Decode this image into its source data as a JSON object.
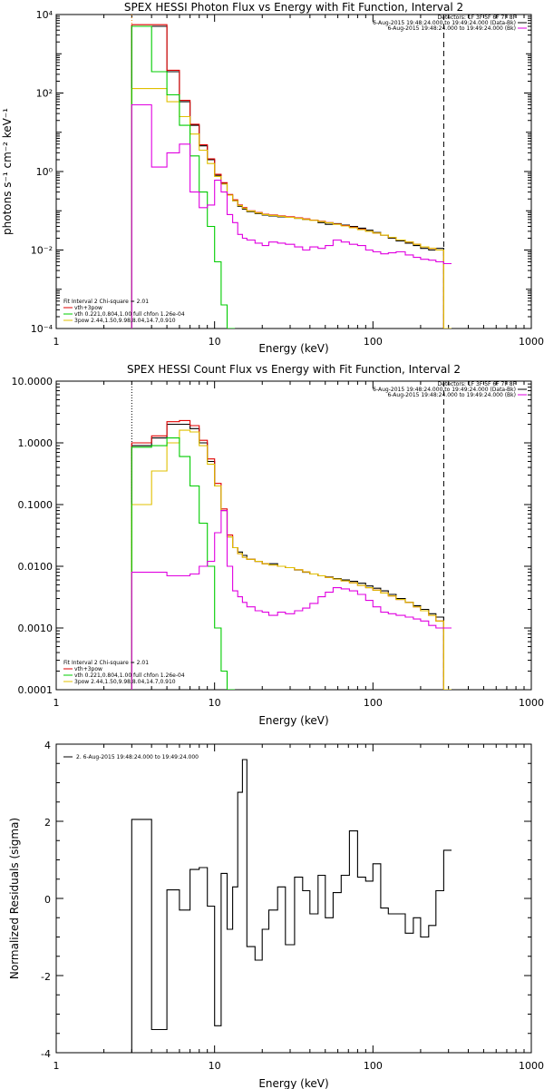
{
  "chart_data": [
    {
      "type": "line",
      "title": "SPEX HESSI Photon Flux vs Energy with Fit Function, Interval 2",
      "xlabel": "Energy (keV)",
      "ylabel": "photons s⁻¹ cm⁻² keV⁻¹",
      "xscale": "log",
      "yscale": "log",
      "xlim": [
        1,
        1000
      ],
      "ylim": [
        0.0001,
        10000
      ],
      "x_ticks": [
        "1",
        "10",
        "100",
        "1000"
      ],
      "y_ticks": [
        "10⁻⁴",
        "10⁻²",
        "10⁰",
        "10²",
        "10⁴"
      ],
      "vlines": [
        {
          "x": 3,
          "style": "dotted",
          "color": "#ff8c00"
        },
        {
          "x": 280,
          "style": "dashed",
          "color": "#000000"
        }
      ],
      "legend_top": [
        {
          "text": "Detectors: 1F 3F 5F 6F 7F 8F",
          "color": ""
        },
        {
          "text": "6-Aug-2015 19:48:24.000 to 19:49:24.000 (Data-Bk)",
          "color": "#000000"
        },
        {
          "text": "6-Aug-2015 19:48:24.000 to 19:49:24.000 (Bk)",
          "color": "#e000e0"
        }
      ],
      "legend_bottom": [
        {
          "text": "Fit Interval 2   Chi-square = 2.01",
          "color": ""
        },
        {
          "text": "vth+3pow",
          "color": "#e00000"
        },
        {
          "text": "vth 0.221,0.804,1.00  full chfon 1.26e-04",
          "color": "#00cc00"
        },
        {
          "text": "3pow 2.44,1.50,9.98,8.04,14.7,0.910",
          "color": "#e0c000"
        }
      ],
      "series": [
        {
          "color": "#000000",
          "x": [
            3,
            4,
            5,
            6,
            7,
            8,
            9,
            10,
            11,
            12,
            13,
            14,
            15,
            16,
            18,
            20,
            22,
            25,
            28,
            32,
            36,
            40,
            45,
            50,
            56,
            63,
            71,
            80,
            90,
            100,
            112,
            125,
            140,
            160,
            180,
            200,
            225,
            250,
            280
          ],
          "y": [
            5000,
            5000,
            350,
            60,
            15,
            4.5,
            2,
            0.8,
            0.5,
            0.25,
            0.18,
            0.13,
            0.11,
            0.095,
            0.085,
            0.078,
            0.074,
            0.07,
            0.068,
            0.064,
            0.06,
            0.058,
            0.05,
            0.045,
            0.047,
            0.043,
            0.04,
            0.036,
            0.032,
            0.028,
            0.024,
            0.02,
            0.017,
            0.015,
            0.013,
            0.011,
            0.01,
            0.011,
            0.0001
          ]
        },
        {
          "color": "#e00000",
          "x": [
            3,
            4,
            5,
            6,
            7,
            8,
            9,
            10,
            11,
            12,
            13,
            14,
            15,
            16,
            18,
            20,
            22,
            25,
            28,
            32,
            36,
            40,
            45,
            50,
            56,
            63,
            71,
            80,
            90,
            100,
            112,
            125,
            140,
            160,
            180,
            200,
            225,
            250,
            280
          ],
          "y": [
            5500,
            5500,
            380,
            65,
            16,
            4.8,
            2.1,
            0.85,
            0.52,
            0.26,
            0.19,
            0.14,
            0.12,
            0.1,
            0.09,
            0.082,
            0.078,
            0.074,
            0.07,
            0.066,
            0.062,
            0.058,
            0.054,
            0.05,
            0.046,
            0.042,
            0.038,
            0.034,
            0.03,
            0.027,
            0.024,
            0.021,
            0.018,
            0.016,
            0.014,
            0.012,
            0.011,
            0.01,
            0.0001
          ]
        },
        {
          "color": "#e0c000",
          "x": [
            3,
            4,
            5,
            6,
            7,
            8,
            9,
            10,
            11,
            12,
            13,
            14,
            15,
            16,
            18,
            20,
            22,
            25,
            28,
            32,
            36,
            40,
            45,
            50,
            56,
            63,
            71,
            80,
            90,
            100,
            112,
            125,
            140,
            160,
            180,
            200,
            225,
            250,
            280
          ],
          "y": [
            130,
            130,
            60,
            25,
            9,
            3.5,
            1.6,
            0.75,
            0.48,
            0.25,
            0.18,
            0.135,
            0.115,
            0.098,
            0.088,
            0.08,
            0.076,
            0.072,
            0.068,
            0.064,
            0.06,
            0.057,
            0.053,
            0.049,
            0.045,
            0.041,
            0.037,
            0.033,
            0.03,
            0.027,
            0.024,
            0.021,
            0.018,
            0.016,
            0.014,
            0.012,
            0.011,
            0.01,
            0.0001
          ]
        },
        {
          "color": "#00cc00",
          "x": [
            3,
            4,
            5,
            6,
            7,
            8,
            9,
            10,
            11,
            12
          ],
          "y": [
            5000,
            350,
            90,
            15,
            2.5,
            0.3,
            0.04,
            0.005,
            0.0004,
            0.0001
          ]
        },
        {
          "color": "#e000e0",
          "x": [
            3,
            4,
            5,
            6,
            7,
            8,
            9,
            10,
            11,
            12,
            13,
            14,
            15,
            16,
            18,
            20,
            22,
            25,
            28,
            32,
            36,
            40,
            45,
            50,
            56,
            63,
            71,
            80,
            90,
            100,
            112,
            125,
            140,
            160,
            180,
            200,
            225,
            250,
            280
          ],
          "y": [
            50,
            1.3,
            3,
            5,
            0.3,
            0.12,
            0.14,
            0.6,
            0.3,
            0.08,
            0.05,
            0.025,
            0.02,
            0.018,
            0.015,
            0.013,
            0.016,
            0.015,
            0.014,
            0.012,
            0.01,
            0.012,
            0.011,
            0.013,
            0.018,
            0.016,
            0.014,
            0.013,
            0.01,
            0.009,
            0.008,
            0.0085,
            0.009,
            0.0075,
            0.0065,
            0.0058,
            0.0055,
            0.005,
            0.0045
          ]
        }
      ]
    },
    {
      "type": "line",
      "title": "SPEX HESSI Count Flux vs Energy with Fit Function, Interval 2",
      "xlabel": "Energy (keV)",
      "ylabel": "",
      "xscale": "log",
      "yscale": "log",
      "xlim": [
        1,
        1000
      ],
      "ylim": [
        0.0001,
        10
      ],
      "x_ticks": [
        "1",
        "10",
        "100",
        "1000"
      ],
      "y_ticks": [
        "0.0001",
        "0.0010",
        "0.0100",
        "0.1000",
        "1.0000",
        "10.0000"
      ],
      "vlines": [
        {
          "x": 3,
          "style": "dotted",
          "color": "#000000"
        },
        {
          "x": 280,
          "style": "dashed",
          "color": "#000000"
        }
      ],
      "legend_top": [
        {
          "text": "Detectors: 1F 3F 5F 6F 7F 8F",
          "color": ""
        },
        {
          "text": "6-Aug-2015 19:48:24.000 to 19:49:24.000 (Data-Bk)",
          "color": "#000000"
        },
        {
          "text": "6-Aug-2015 19:48:24.000 to 19:49:24.000 (Bk)",
          "color": "#e000e0"
        }
      ],
      "legend_bottom": [
        {
          "text": "Fit Interval 2   Chi-square = 2.01",
          "color": ""
        },
        {
          "text": "vth+3pow",
          "color": "#e00000"
        },
        {
          "text": "vth 0.221,0.804,1.00  full chfon 1.26e-04",
          "color": "#00cc00"
        },
        {
          "text": "3pow 2.44,1.50,9.98,8.04,14.7,0.910",
          "color": "#e0c000"
        }
      ],
      "series": [
        {
          "color": "#000000",
          "x": [
            3,
            4,
            5,
            6,
            7,
            8,
            9,
            10,
            11,
            12,
            13,
            14,
            15,
            16,
            18,
            20,
            22,
            25,
            28,
            32,
            36,
            40,
            45,
            50,
            56,
            63,
            71,
            80,
            90,
            100,
            112,
            125,
            140,
            160,
            180,
            200,
            225,
            250,
            280
          ],
          "y": [
            0.9,
            1.2,
            2,
            2,
            1.7,
            1,
            0.5,
            0.2,
            0.08,
            0.03,
            0.02,
            0.017,
            0.015,
            0.013,
            0.012,
            0.011,
            0.011,
            0.01,
            0.0095,
            0.0087,
            0.008,
            0.0075,
            0.007,
            0.0067,
            0.0063,
            0.006,
            0.0057,
            0.0053,
            0.0048,
            0.0044,
            0.004,
            0.0035,
            0.003,
            0.0026,
            0.0023,
            0.002,
            0.0017,
            0.0015,
            0.0001
          ]
        },
        {
          "color": "#e00000",
          "x": [
            3,
            4,
            5,
            6,
            7,
            8,
            9,
            10,
            11,
            12,
            13,
            14,
            15,
            16,
            18,
            20,
            22,
            25,
            28,
            32,
            36,
            40,
            45,
            50,
            56,
            63,
            71,
            80,
            90,
            100,
            112,
            125,
            140,
            160,
            180,
            200,
            225,
            250,
            280
          ],
          "y": [
            1,
            1.3,
            2.2,
            2.3,
            1.9,
            1.1,
            0.55,
            0.22,
            0.085,
            0.032,
            0.02,
            0.016,
            0.014,
            0.013,
            0.012,
            0.011,
            0.0105,
            0.01,
            0.0095,
            0.0088,
            0.0081,
            0.0075,
            0.007,
            0.0066,
            0.0062,
            0.0058,
            0.0054,
            0.0049,
            0.0045,
            0.0041,
            0.0037,
            0.0033,
            0.0029,
            0.0026,
            0.0022,
            0.0019,
            0.0016,
            0.0013,
            0.0001
          ]
        },
        {
          "color": "#e0c000",
          "x": [
            3,
            4,
            5,
            6,
            7,
            8,
            9,
            10,
            11,
            12,
            13,
            14,
            15,
            16,
            18,
            20,
            22,
            25,
            28,
            32,
            36,
            40,
            45,
            50,
            56,
            63,
            71,
            80,
            90,
            100,
            112,
            125,
            140,
            160,
            180,
            200,
            225,
            250,
            280
          ],
          "y": [
            0.1,
            0.35,
            1,
            1.6,
            1.5,
            0.9,
            0.45,
            0.2,
            0.08,
            0.03,
            0.02,
            0.016,
            0.014,
            0.013,
            0.012,
            0.011,
            0.0105,
            0.01,
            0.0095,
            0.0088,
            0.0081,
            0.0075,
            0.007,
            0.0066,
            0.0062,
            0.0058,
            0.0054,
            0.0049,
            0.0045,
            0.0041,
            0.0037,
            0.0033,
            0.0029,
            0.0026,
            0.0022,
            0.0019,
            0.0016,
            0.0013,
            0.0001
          ]
        },
        {
          "color": "#00cc00",
          "x": [
            3,
            4,
            5,
            6,
            7,
            8,
            9,
            10,
            11,
            12
          ],
          "y": [
            0.85,
            0.9,
            1.2,
            0.6,
            0.2,
            0.05,
            0.01,
            0.001,
            0.0002,
            0.0001
          ]
        },
        {
          "color": "#e000e0",
          "x": [
            3,
            4,
            5,
            6,
            7,
            8,
            9,
            10,
            11,
            12,
            13,
            14,
            15,
            16,
            18,
            20,
            22,
            25,
            28,
            32,
            36,
            40,
            45,
            50,
            56,
            63,
            71,
            80,
            90,
            100,
            112,
            125,
            140,
            160,
            180,
            200,
            225,
            250,
            280
          ],
          "y": [
            0.008,
            0.008,
            0.007,
            0.007,
            0.0075,
            0.01,
            0.012,
            0.035,
            0.08,
            0.01,
            0.004,
            0.0032,
            0.0026,
            0.0022,
            0.0019,
            0.0018,
            0.0016,
            0.0018,
            0.0017,
            0.0019,
            0.0021,
            0.0025,
            0.0032,
            0.0038,
            0.0045,
            0.0043,
            0.004,
            0.0035,
            0.0028,
            0.0022,
            0.0018,
            0.0017,
            0.0016,
            0.0015,
            0.0014,
            0.0013,
            0.0011,
            0.001,
            0.001
          ]
        }
      ]
    },
    {
      "type": "line",
      "title": "",
      "xlabel": "Energy (keV)",
      "ylabel": "Normalized Residuals (sigma)",
      "xscale": "log",
      "yscale": "linear",
      "xlim": [
        1,
        1000
      ],
      "ylim": [
        -4,
        4
      ],
      "x_ticks": [
        "1",
        "10",
        "100",
        "1000"
      ],
      "y_ticks": [
        "-4",
        "-2",
        "0",
        "2",
        "4"
      ],
      "legend_top": [
        {
          "text": "2.  6-Aug-2015 19:48:24.000 to 19:49:24.000",
          "color": "#000000"
        }
      ],
      "series": [
        {
          "color": "#000000",
          "x": [
            3,
            4,
            5,
            6,
            7,
            8,
            9,
            10,
            11,
            12,
            13,
            14,
            15,
            16,
            18,
            20,
            22,
            25,
            28,
            32,
            36,
            40,
            45,
            50,
            56,
            63,
            71,
            80,
            90,
            100,
            112,
            125,
            140,
            160,
            180,
            200,
            225,
            250,
            280
          ],
          "y": [
            2.05,
            -3.4,
            0.22,
            -0.3,
            0.75,
            0.8,
            -0.2,
            -3.3,
            0.65,
            -0.8,
            0.3,
            2.75,
            3.6,
            -1.25,
            -1.6,
            -0.8,
            -0.3,
            0.3,
            -1.2,
            0.55,
            0.2,
            -0.4,
            0.6,
            -0.5,
            0.15,
            0.6,
            1.75,
            0.55,
            0.45,
            0.9,
            -0.25,
            -0.4,
            -0.4,
            -0.9,
            -0.5,
            -1.0,
            -0.7,
            0.2,
            1.25
          ]
        }
      ]
    }
  ]
}
